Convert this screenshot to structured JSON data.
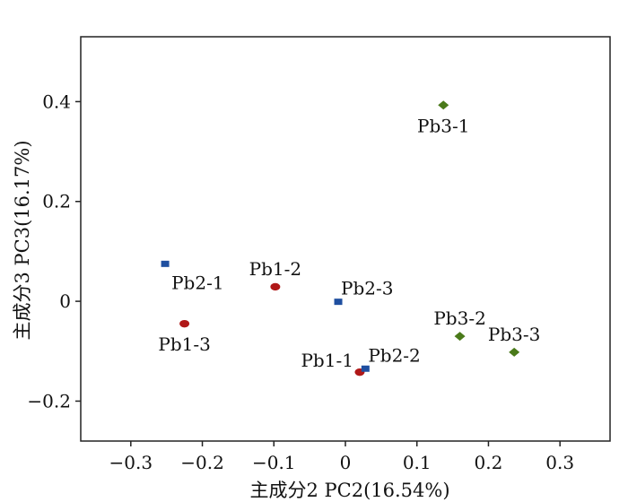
{
  "chart_data": {
    "type": "scatter",
    "xlabel": "主成分2 PC2(16.54%)",
    "ylabel": "主成分3 PC3(16.17%)",
    "xlim": [
      -0.37,
      0.37
    ],
    "ylim": [
      -0.28,
      0.53
    ],
    "x_ticks": [
      {
        "value": -0.3,
        "label": "−0.3"
      },
      {
        "value": -0.2,
        "label": "−0.2"
      },
      {
        "value": -0.1,
        "label": "−0.1"
      },
      {
        "value": 0,
        "label": "0"
      },
      {
        "value": 0.1,
        "label": "0.1"
      },
      {
        "value": 0.2,
        "label": "0.2"
      },
      {
        "value": 0.3,
        "label": "0.3"
      }
    ],
    "y_ticks": [
      {
        "value": 0.4,
        "label": "0.4"
      },
      {
        "value": 0.2,
        "label": "0.2"
      },
      {
        "value": 0,
        "label": "0"
      },
      {
        "value": -0.2,
        "label": "−0.2"
      }
    ],
    "grid": false,
    "legend": "none",
    "series": [
      {
        "color": "#b01818",
        "marker": "circle",
        "points": [
          {
            "label": "Pb1-1",
            "x": 0.02,
            "y": -0.142,
            "label_pos": "left"
          },
          {
            "label": "Pb1-2",
            "x": -0.098,
            "y": 0.029,
            "label_pos": "above"
          },
          {
            "label": "Pb1-3",
            "x": -0.225,
            "y": -0.045,
            "label_pos": "below"
          }
        ]
      },
      {
        "color": "#1f4fa0",
        "marker": "square",
        "points": [
          {
            "label": "Pb2-1",
            "x": -0.252,
            "y": 0.075,
            "label_pos": "below-right"
          },
          {
            "label": "Pb2-2",
            "x": 0.028,
            "y": -0.135,
            "label_pos": "above-right"
          },
          {
            "label": "Pb2-3",
            "x": -0.01,
            "y": -0.001,
            "label_pos": "above-right"
          }
        ]
      },
      {
        "color": "#4a7a1a",
        "marker": "diamond",
        "points": [
          {
            "label": "Pb3-1",
            "x": 0.137,
            "y": 0.393,
            "label_pos": "below"
          },
          {
            "label": "Pb3-2",
            "x": 0.16,
            "y": -0.07,
            "label_pos": "above"
          },
          {
            "label": "Pb3-3",
            "x": 0.236,
            "y": -0.102,
            "label_pos": "above"
          }
        ]
      }
    ]
  }
}
